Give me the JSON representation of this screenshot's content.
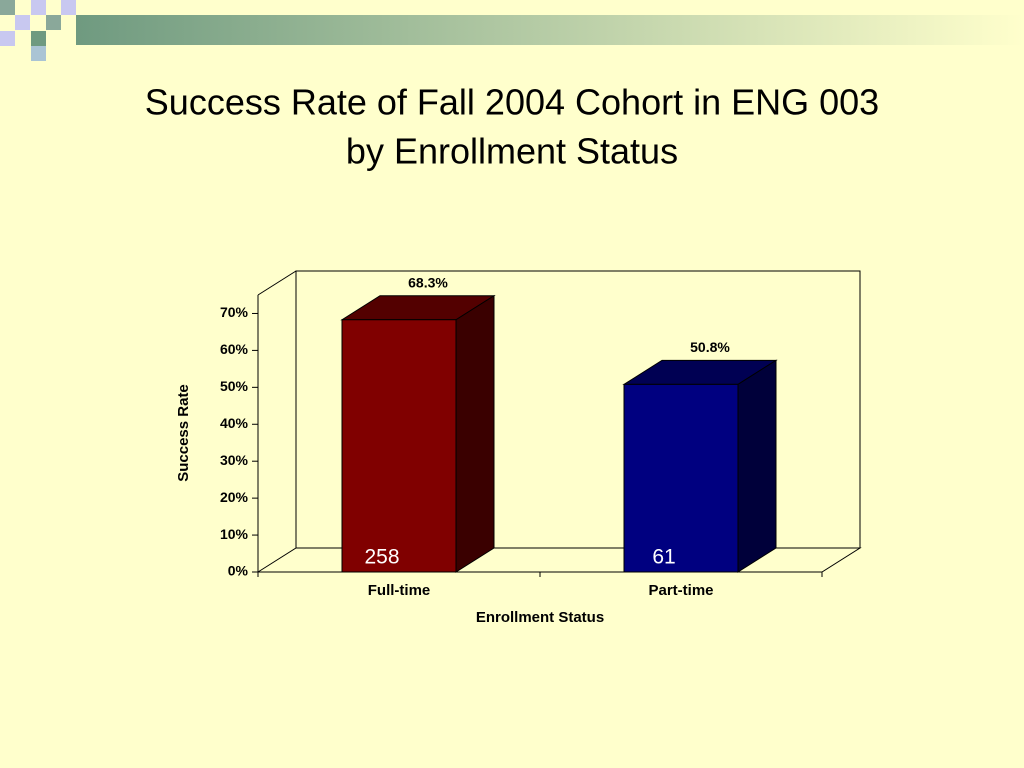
{
  "chart_data": {
    "type": "bar3d",
    "title": [
      "Success Rate of Fall 2004 Cohort in ENG 003",
      "by Enrollment Status"
    ],
    "x_label": "Enrollment Status",
    "y_label": "Success Rate",
    "categories": [
      "Full-time",
      "Part-time"
    ],
    "series": [
      {
        "name": "Success Rate",
        "values": [
          68.3,
          50.8
        ],
        "value_labels": [
          "68.3%",
          "50.8%"
        ],
        "colors": [
          "#800000",
          "#000080"
        ]
      }
    ],
    "bar_annotations": [
      "258",
      "61"
    ],
    "ylim": [
      0,
      75
    ],
    "yticks": [
      {
        "value": 0,
        "label": "0%"
      },
      {
        "value": 10,
        "label": "10%"
      },
      {
        "value": 20,
        "label": "20%"
      },
      {
        "value": 30,
        "label": "30%"
      },
      {
        "value": 40,
        "label": "40%"
      },
      {
        "value": 50,
        "label": "50%"
      },
      {
        "value": 60,
        "label": "60%"
      },
      {
        "value": 70,
        "label": "70%"
      }
    ],
    "grid": false
  }
}
